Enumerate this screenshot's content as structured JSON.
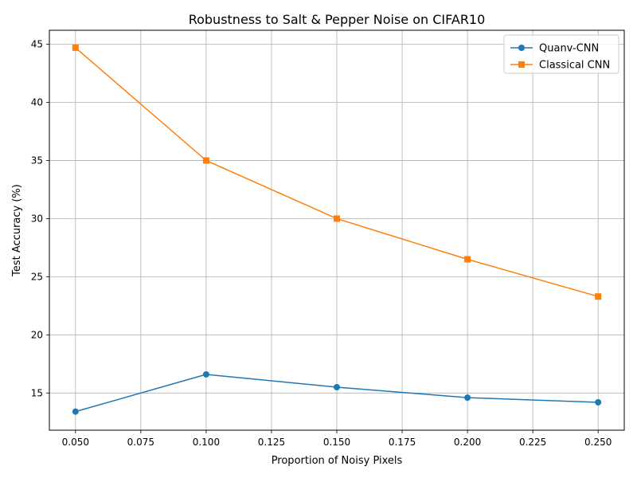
{
  "chart_data": {
    "type": "line",
    "title": "Robustness to Salt & Pepper Noise on CIFAR10",
    "xlabel": "Proportion of Noisy Pixels",
    "ylabel": "Test Accuracy (%)",
    "xlim": [
      0.04,
      0.26
    ],
    "ylim": [
      11.8,
      46.2
    ],
    "xticks": [
      "0.050",
      "0.075",
      "0.100",
      "0.125",
      "0.150",
      "0.175",
      "0.200",
      "0.225",
      "0.250"
    ],
    "xtick_values": [
      0.05,
      0.075,
      0.1,
      0.125,
      0.15,
      0.175,
      0.2,
      0.225,
      0.25
    ],
    "yticks": [
      "15",
      "20",
      "25",
      "30",
      "35",
      "40",
      "45"
    ],
    "ytick_values": [
      15,
      20,
      25,
      30,
      35,
      40,
      45
    ],
    "grid": true,
    "legend_position": "top-right",
    "x": [
      0.05,
      0.1,
      0.15,
      0.2,
      0.25
    ],
    "series": [
      {
        "name": "Quanv-CNN",
        "values": [
          13.4,
          16.6,
          15.5,
          14.6,
          14.2
        ],
        "color": "#1f77b4",
        "marker": "circle"
      },
      {
        "name": "Classical CNN",
        "values": [
          44.7,
          35.0,
          30.0,
          26.5,
          23.3
        ],
        "color": "#ff7f0e",
        "marker": "square"
      }
    ]
  }
}
